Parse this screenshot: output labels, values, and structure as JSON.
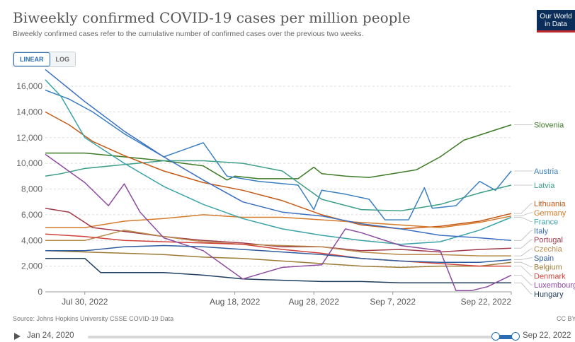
{
  "title": "Biweekly confirmed COVID-19 cases per million people",
  "subtitle": "Biweekly confirmed cases refer to the cumulative number of confirmed cases over the previous two weeks.",
  "logo": {
    "line1": "Our World",
    "line2": "in Data"
  },
  "scale_toggle": {
    "linear": "LINEAR",
    "log": "LOG",
    "active": "linear"
  },
  "source": "Source: Johns Hopkins University CSSE COVID-19 Data",
  "license": "CC BY",
  "timeline": {
    "start_label": "Jan 24, 2020",
    "end_label": "Sep 22, 2022"
  },
  "chart_data": {
    "type": "line",
    "title": "Biweekly confirmed COVID-19 cases per million people",
    "subtitle": "Biweekly confirmed cases refer to the cumulative number of confirmed cases over the previous two weeks.",
    "xlabel": "",
    "ylabel": "",
    "x_range": [
      "2022-07-25",
      "2022-09-22"
    ],
    "x_ticks": [
      {
        "date": "2022-07-30",
        "label": "Jul 30, 2022"
      },
      {
        "date": "2022-08-18",
        "label": "Aug 18, 2022"
      },
      {
        "date": "2022-08-28",
        "label": "Aug 28, 2022"
      },
      {
        "date": "2022-09-07",
        "label": "Sep 7, 2022"
      },
      {
        "date": "2022-09-22",
        "label": "Sep 22, 2022"
      }
    ],
    "ylim": [
      0,
      16000
    ],
    "y_ticks": [
      0,
      2000,
      4000,
      6000,
      8000,
      10000,
      12000,
      14000,
      16000
    ],
    "y_tick_labels": [
      "0",
      "2,000",
      "4,000",
      "6,000",
      "8,000",
      "10,000",
      "12,000",
      "14,000",
      "16,000"
    ],
    "grid": "horizontal dashed",
    "legend": "right, labels at line ends",
    "series": [
      {
        "name": "Slovenia",
        "color": "#3e7b27",
        "x": [
          "2022-07-25",
          "2022-07-30",
          "2022-08-04",
          "2022-08-09",
          "2022-08-14",
          "2022-08-17",
          "2022-08-18",
          "2022-08-21",
          "2022-08-26",
          "2022-08-28",
          "2022-08-29",
          "2022-09-01",
          "2022-09-04",
          "2022-09-07",
          "2022-09-10",
          "2022-09-13",
          "2022-09-16",
          "2022-09-19",
          "2022-09-22"
        ],
        "y": [
          10800,
          10800,
          10500,
          10200,
          9800,
          8700,
          9000,
          8800,
          8800,
          9700,
          9200,
          9000,
          8900,
          9200,
          9500,
          10500,
          11800,
          12400,
          13000
        ]
      },
      {
        "name": "Austria",
        "color": "#3a7fc1",
        "x": [
          "2022-07-25",
          "2022-07-28",
          "2022-07-31",
          "2022-08-04",
          "2022-08-09",
          "2022-08-14",
          "2022-08-17",
          "2022-08-21",
          "2022-08-26",
          "2022-08-28",
          "2022-08-29",
          "2022-09-01",
          "2022-09-04",
          "2022-09-06",
          "2022-09-09",
          "2022-09-11",
          "2022-09-12",
          "2022-09-15",
          "2022-09-18",
          "2022-09-20",
          "2022-09-22"
        ],
        "y": [
          15700,
          15000,
          14000,
          12300,
          10500,
          11600,
          9000,
          8600,
          8300,
          6400,
          7900,
          7600,
          7200,
          5600,
          5600,
          8100,
          6500,
          6700,
          8600,
          7900,
          9400
        ]
      },
      {
        "name": "Latvia",
        "color": "#3e9e89",
        "x": [
          "2022-07-25",
          "2022-07-27",
          "2022-07-30",
          "2022-08-04",
          "2022-08-09",
          "2022-08-14",
          "2022-08-19",
          "2022-08-24",
          "2022-08-29",
          "2022-09-03",
          "2022-09-08",
          "2022-09-13",
          "2022-09-18",
          "2022-09-22"
        ],
        "y": [
          9000,
          9200,
          9600,
          9900,
          10200,
          10200,
          10000,
          9400,
          7200,
          6400,
          6300,
          6800,
          7700,
          8300
        ]
      },
      {
        "name": "Lithuania",
        "color": "#c75a17",
        "x": [
          "2022-07-25",
          "2022-07-28",
          "2022-07-31",
          "2022-08-04",
          "2022-08-09",
          "2022-08-14",
          "2022-08-19",
          "2022-08-24",
          "2022-08-29",
          "2022-09-03",
          "2022-09-08",
          "2022-09-13",
          "2022-09-18",
          "2022-09-22"
        ],
        "y": [
          14000,
          13000,
          11700,
          10600,
          9400,
          8500,
          7900,
          7100,
          6000,
          5200,
          4900,
          5100,
          5500,
          6100
        ]
      },
      {
        "name": "Germany",
        "color": "#d47a2a",
        "x": [
          "2022-07-25",
          "2022-07-30",
          "2022-08-04",
          "2022-08-09",
          "2022-08-14",
          "2022-08-19",
          "2022-08-24",
          "2022-08-29",
          "2022-09-03",
          "2022-09-08",
          "2022-09-13",
          "2022-09-18",
          "2022-09-22"
        ],
        "y": [
          5000,
          5000,
          5500,
          5700,
          6000,
          5800,
          5800,
          5600,
          5400,
          5200,
          5000,
          5400,
          5900
        ]
      },
      {
        "name": "France",
        "color": "#3aa3a8",
        "x": [
          "2022-07-25",
          "2022-07-27",
          "2022-07-30",
          "2022-08-04",
          "2022-08-09",
          "2022-08-14",
          "2022-08-19",
          "2022-08-24",
          "2022-08-29",
          "2022-09-03",
          "2022-09-08",
          "2022-09-13",
          "2022-09-18",
          "2022-09-22"
        ],
        "y": [
          16500,
          15200,
          12000,
          10000,
          8200,
          6800,
          5700,
          4900,
          4400,
          4000,
          3700,
          3900,
          4800,
          5800
        ]
      },
      {
        "name": "Italy",
        "color": "#3b6fc1",
        "x": [
          "2022-07-25",
          "2022-07-30",
          "2022-08-04",
          "2022-08-09",
          "2022-08-14",
          "2022-08-19",
          "2022-08-24",
          "2022-08-29",
          "2022-09-03",
          "2022-09-08",
          "2022-09-13",
          "2022-09-18",
          "2022-09-22"
        ],
        "y": [
          17300,
          14800,
          12500,
          10500,
          8700,
          7000,
          6200,
          5900,
          5300,
          4900,
          4400,
          4200,
          4000
        ]
      },
      {
        "name": "Portugal",
        "color": "#a03a4a",
        "x": [
          "2022-07-25",
          "2022-07-28",
          "2022-07-31",
          "2022-08-04",
          "2022-08-09",
          "2022-08-14",
          "2022-08-19",
          "2022-08-24",
          "2022-08-29",
          "2022-09-03",
          "2022-09-08",
          "2022-09-13",
          "2022-09-18",
          "2022-09-22"
        ],
        "y": [
          6500,
          6200,
          5000,
          4700,
          4300,
          4000,
          3800,
          3500,
          3500,
          3200,
          3300,
          3100,
          3300,
          3400
        ]
      },
      {
        "name": "Czechia",
        "color": "#b88a4a",
        "x": [
          "2022-07-25",
          "2022-07-30",
          "2022-08-04",
          "2022-08-09",
          "2022-08-14",
          "2022-08-19",
          "2022-08-24",
          "2022-08-29",
          "2022-09-03",
          "2022-09-08",
          "2022-09-13",
          "2022-09-18",
          "2022-09-22"
        ],
        "y": [
          4000,
          4000,
          4800,
          4300,
          3900,
          3700,
          3600,
          3500,
          3100,
          2900,
          2900,
          2800,
          2800
        ]
      },
      {
        "name": "Belgium",
        "color": "#9c7b35",
        "x": [
          "2022-07-25",
          "2022-07-30",
          "2022-08-04",
          "2022-08-09",
          "2022-08-14",
          "2022-08-19",
          "2022-08-24",
          "2022-08-29",
          "2022-09-03",
          "2022-09-08",
          "2022-09-13",
          "2022-09-18",
          "2022-09-22"
        ],
        "y": [
          3200,
          3100,
          3000,
          2900,
          2700,
          2600,
          2400,
          2200,
          2000,
          1900,
          2000,
          2000,
          2300
        ]
      },
      {
        "name": "Hungary",
        "color": "#1f3e5e",
        "x": [
          "2022-07-25",
          "2022-07-30",
          "2022-08-01",
          "2022-08-04",
          "2022-08-09",
          "2022-08-14",
          "2022-08-19",
          "2022-08-24",
          "2022-08-29",
          "2022-09-03",
          "2022-09-08",
          "2022-09-13",
          "2022-09-18",
          "2022-09-22"
        ],
        "y": [
          2600,
          2600,
          1500,
          1500,
          1500,
          1300,
          1000,
          900,
          800,
          800,
          700,
          700,
          700,
          700
        ]
      },
      {
        "name": "Denmark",
        "color": "#d0433b",
        "x": [
          "2022-07-25",
          "2022-07-30",
          "2022-08-04",
          "2022-08-09",
          "2022-08-14",
          "2022-08-19",
          "2022-08-24",
          "2022-08-29",
          "2022-09-03",
          "2022-09-08",
          "2022-09-13",
          "2022-09-18",
          "2022-09-22"
        ],
        "y": [
          4500,
          4300,
          4000,
          3900,
          3800,
          3700,
          3300,
          3000,
          2600,
          2400,
          2200,
          2000,
          2000
        ]
      },
      {
        "name": "Luxembourg",
        "color": "#8d4ba0",
        "x": [
          "2022-07-25",
          "2022-07-30",
          "2022-08-02",
          "2022-08-04",
          "2022-08-06",
          "2022-08-09",
          "2022-08-14",
          "2022-08-19",
          "2022-08-24",
          "2022-08-29",
          "2022-09-01",
          "2022-09-03",
          "2022-09-08",
          "2022-09-13",
          "2022-09-15",
          "2022-09-17",
          "2022-09-19",
          "2022-09-22"
        ],
        "y": [
          10700,
          8500,
          6700,
          8400,
          6200,
          4200,
          3200,
          1000,
          1900,
          2100,
          4900,
          4600,
          3600,
          3200,
          100,
          100,
          400,
          1300
        ]
      },
      {
        "name": "Spain",
        "color": "#2f5e9e",
        "x": [
          "2022-07-25",
          "2022-07-30",
          "2022-08-04",
          "2022-08-09",
          "2022-08-14",
          "2022-08-19",
          "2022-08-24",
          "2022-08-29",
          "2022-09-03",
          "2022-09-08",
          "2022-09-13",
          "2022-09-18",
          "2022-09-22"
        ],
        "y": [
          3200,
          3200,
          3500,
          3600,
          3500,
          3300,
          3100,
          2900,
          2600,
          2400,
          2300,
          2300,
          2500
        ]
      }
    ]
  }
}
